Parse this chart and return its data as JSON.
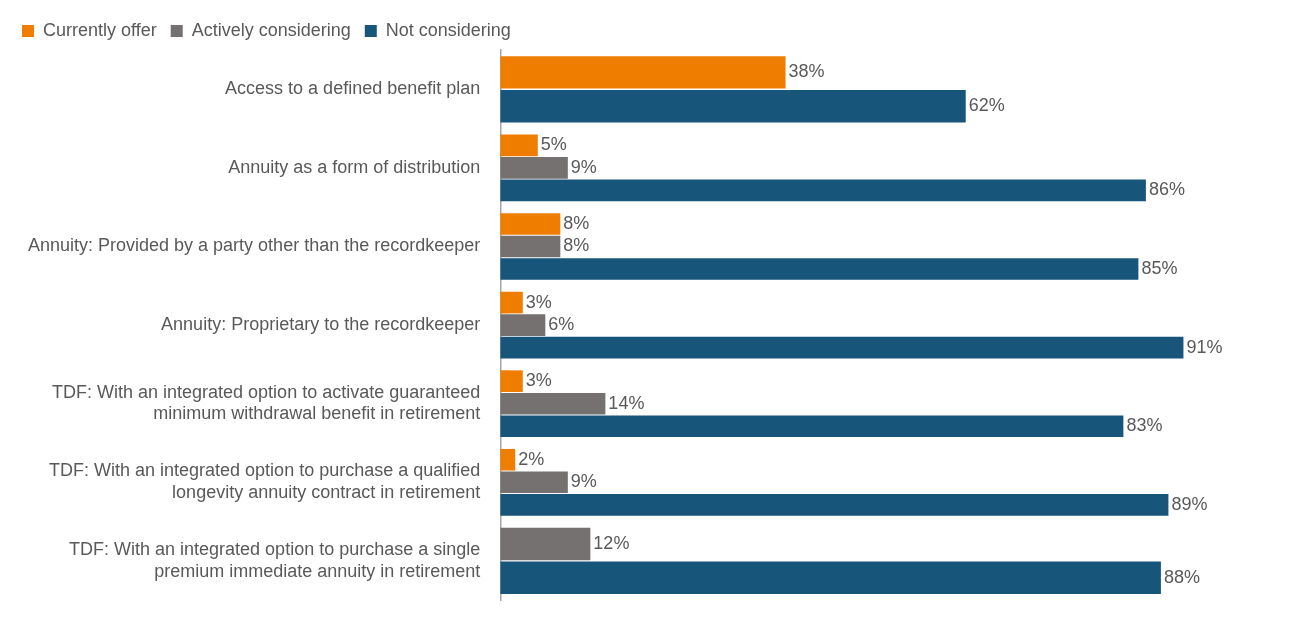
{
  "chart_data": {
    "type": "bar",
    "orientation": "horizontal",
    "legend": "top left",
    "tick_labels": "y",
    "grid": false,
    "categories": [
      "Access to a defined benefit plan",
      "Annuity as a form of distribution",
      "Annuity: Provided by a party other than the recordkeeper",
      "Annuity: Proprietary to the recordkeeper",
      "TDF: With an integrated option to activate guaranteed\nminimum withdrawal benefit in retirement",
      "TDF: With an integrated option to purchase a qualified\nlongevity annuity contract in retirement",
      "TDF: With an integrated option to purchase a single\npremium immediate annuity in retirement"
    ],
    "series": [
      {
        "name": "Currently offer",
        "color": "#ef7d00",
        "values": [
          38,
          5,
          8,
          3,
          3,
          2,
          null
        ],
        "value_labels": [
          "38%",
          "5%",
          "8%",
          "3%",
          "3%",
          "2%",
          null
        ]
      },
      {
        "name": "Actively considering",
        "color": "#767171",
        "values": [
          null,
          9,
          8,
          6,
          14,
          9,
          12
        ],
        "value_labels": [
          null,
          "9%",
          "8%",
          "6%",
          "14%",
          "9%",
          "12%"
        ]
      },
      {
        "name": "Not considering",
        "color": "#17557a",
        "values": [
          62,
          86,
          85,
          91,
          83,
          89,
          88
        ],
        "value_labels": [
          "62%",
          "86%",
          "85%",
          "91%",
          "83%",
          "89%",
          "88%"
        ]
      }
    ]
  }
}
